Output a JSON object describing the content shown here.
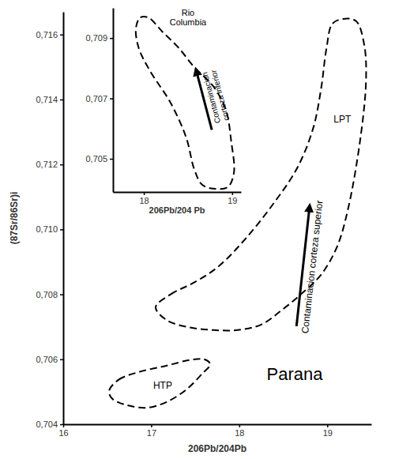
{
  "chart_data": [
    {
      "type": "line",
      "xlabel": "206Pb/204Pb",
      "ylabel": "(87Sr/86Sr)i",
      "xlim": [
        16,
        19.5
      ],
      "ylim": [
        0.704,
        0.7167
      ],
      "xticks": [
        16,
        17,
        18,
        19
      ],
      "yticks": [
        {
          "value": 0.704,
          "label": "0,704"
        },
        {
          "value": 0.706,
          "label": "0,706"
        },
        {
          "value": 0.708,
          "label": "0,708"
        },
        {
          "value": 0.71,
          "label": "0,710"
        },
        {
          "value": 0.712,
          "label": "0,712"
        },
        {
          "value": 0.714,
          "label": "0,714"
        },
        {
          "value": 0.716,
          "label": "0,716"
        }
      ],
      "series": [
        {
          "color": "#000000",
          "line_style": "dashed",
          "x": [
            16.52,
            16.63,
            16.86,
            17.17,
            17.44,
            17.6,
            17.67,
            17.58,
            17.4,
            17.17,
            16.95,
            16.72,
            16.56
          ],
          "values": [
            0.70502,
            0.70537,
            0.70561,
            0.7058,
            0.70598,
            0.706,
            0.70585,
            0.70556,
            0.70507,
            0.70468,
            0.70451,
            0.70459,
            0.70478
          ]
        },
        {
          "color": "#000000",
          "line_style": "dashed",
          "x": [
            17.05,
            17.22,
            17.49,
            17.76,
            18.07,
            18.39,
            18.66,
            18.84,
            18.93,
            18.99,
            19.06,
            19.2,
            19.33,
            19.42,
            19.44,
            19.38,
            19.24,
            19.11,
            18.93,
            18.7,
            18.48,
            18.25,
            17.98,
            17.71,
            17.44,
            17.18
          ],
          "values": [
            0.7076,
            0.708,
            0.70837,
            0.70885,
            0.70971,
            0.7108,
            0.7119,
            0.71312,
            0.71434,
            0.71556,
            0.71634,
            0.71649,
            0.71641,
            0.71568,
            0.71459,
            0.71288,
            0.71068,
            0.70946,
            0.70861,
            0.708,
            0.70751,
            0.70707,
            0.7069,
            0.7069,
            0.70698,
            0.7072
          ]
        }
      ],
      "annotations": [
        {
          "lines": [
            "HTP"
          ],
          "x": 17.13,
          "y": 0.7052
        },
        {
          "lines": [
            "LPT"
          ],
          "x": 19.17,
          "y": 0.7134
        },
        {
          "lines": [
            "Parana"
          ],
          "x": 18.63,
          "y": 0.70556
        },
        {
          "lines": [
            "Contaminacion corteza superior"
          ],
          "x": [
            18.65,
            18.8
          ],
          "y": [
            0.70702,
            0.71073
          ]
        }
      ]
    },
    {
      "type": "line",
      "xlabel": "206Pb/204 Pb",
      "xlim": [
        17.65,
        19.1
      ],
      "ylim": [
        0.7039,
        0.71
      ],
      "xticks": [
        18,
        19
      ],
      "yticks": [
        {
          "value": 0.705,
          "label": "0,705"
        },
        {
          "value": 0.707,
          "label": "0,707"
        },
        {
          "value": 0.709,
          "label": "0,709"
        }
      ],
      "series": [
        {
          "color": "#000000",
          "line_style": "dashed",
          "x": [
            17.91,
            17.96,
            18.05,
            18.21,
            18.39,
            18.57,
            18.79,
            18.93,
            18.99,
            19.02,
            18.95,
            18.79,
            18.66,
            18.57,
            18.48,
            18.3,
            18.07,
            17.94
          ],
          "values": [
            0.70934,
            0.70968,
            0.70968,
            0.70921,
            0.70869,
            0.70804,
            0.70739,
            0.70661,
            0.70557,
            0.70453,
            0.70406,
            0.70401,
            0.70414,
            0.70466,
            0.7057,
            0.70687,
            0.70791,
            0.70869
          ]
        }
      ],
      "annotations": [
        {
          "lines": [
            "Rio",
            "Columbia"
          ],
          "x": 18.5,
          "y": 0.70968
        },
        {
          "lines": [
            "Contaminacion",
            "corteza inferior"
          ],
          "x": [
            18.77,
            18.59
          ],
          "y": [
            0.70596,
            0.70796
          ]
        }
      ]
    }
  ]
}
